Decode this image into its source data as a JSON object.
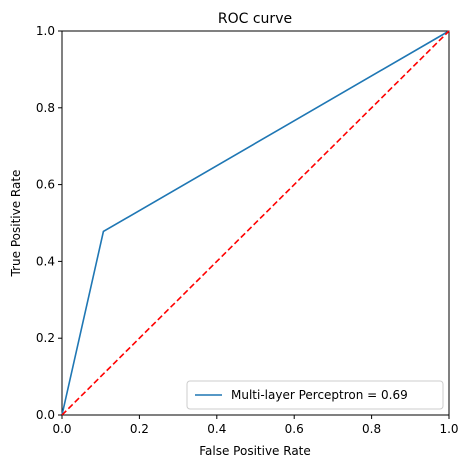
{
  "chart_data": {
    "type": "line",
    "title": "ROC curve",
    "xlabel": "False Positive Rate",
    "ylabel": "True Positive Rate",
    "xlim": [
      0.0,
      1.0
    ],
    "ylim": [
      0.0,
      1.0
    ],
    "x_ticks": [
      "0.0",
      "0.2",
      "0.4",
      "0.6",
      "0.8",
      "1.0"
    ],
    "y_ticks": [
      "0.0",
      "0.2",
      "0.4",
      "0.6",
      "0.8",
      "1.0"
    ],
    "grid": false,
    "legend_position": "bottom-right",
    "series": [
      {
        "name": "Multi-layer Perceptron = 0.69",
        "color": "#1f77b4",
        "style": "solid",
        "x": [
          0.0,
          0.107,
          1.0
        ],
        "y": [
          0.0,
          0.478,
          1.0
        ]
      },
      {
        "color": "#ff0000",
        "style": "dashed",
        "x": [
          0.0,
          1.0
        ],
        "y": [
          0.0,
          1.0
        ]
      }
    ]
  }
}
